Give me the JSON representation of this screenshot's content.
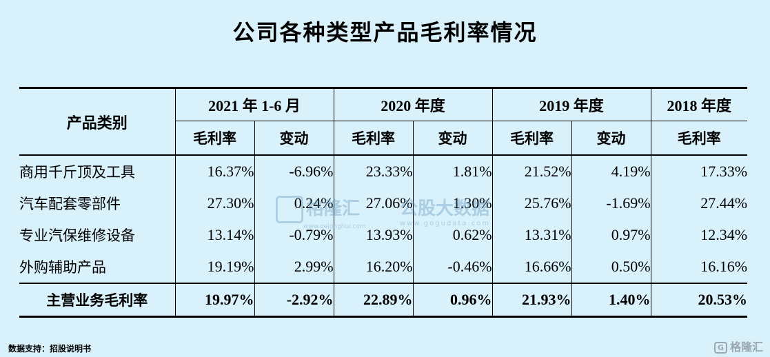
{
  "title": "公司各种类型产品毛利率情况",
  "header": {
    "category": "产品类别",
    "periods": [
      "2021 年 1-6 月",
      "2020 年度",
      "2019 年度",
      "2018 年度"
    ],
    "margin": "毛利率",
    "change": "变动"
  },
  "rows": [
    {
      "label": "商用千斤顶及工具",
      "v": [
        "16.37%",
        "-6.96%",
        "23.33%",
        "1.81%",
        "21.52%",
        "4.19%",
        "17.33%"
      ]
    },
    {
      "label": "汽车配套零部件",
      "v": [
        "27.30%",
        "0.24%",
        "27.06%",
        "1.30%",
        "25.76%",
        "-1.69%",
        "27.44%"
      ]
    },
    {
      "label": "专业汽保维修设备",
      "v": [
        "13.14%",
        "-0.79%",
        "13.93%",
        "0.62%",
        "13.31%",
        "0.97%",
        "12.34%"
      ]
    },
    {
      "label": "外购辅助产品",
      "v": [
        "19.19%",
        "2.99%",
        "16.20%",
        "-0.46%",
        "16.66%",
        "0.50%",
        "16.16%"
      ]
    }
  ],
  "total": {
    "label": "主营业务毛利率",
    "v": [
      "19.97%",
      "-2.92%",
      "22.89%",
      "0.96%",
      "21.93%",
      "1.40%",
      "20.53%"
    ]
  },
  "watermark": {
    "left": "格隆汇",
    "left_url": "www.gelonghui.com",
    "right": "公股大数据",
    "right_url": "www.gogudata.com"
  },
  "source": "数据支持：招股说明书",
  "brand": {
    "box": "G",
    "name": "格隆汇"
  }
}
